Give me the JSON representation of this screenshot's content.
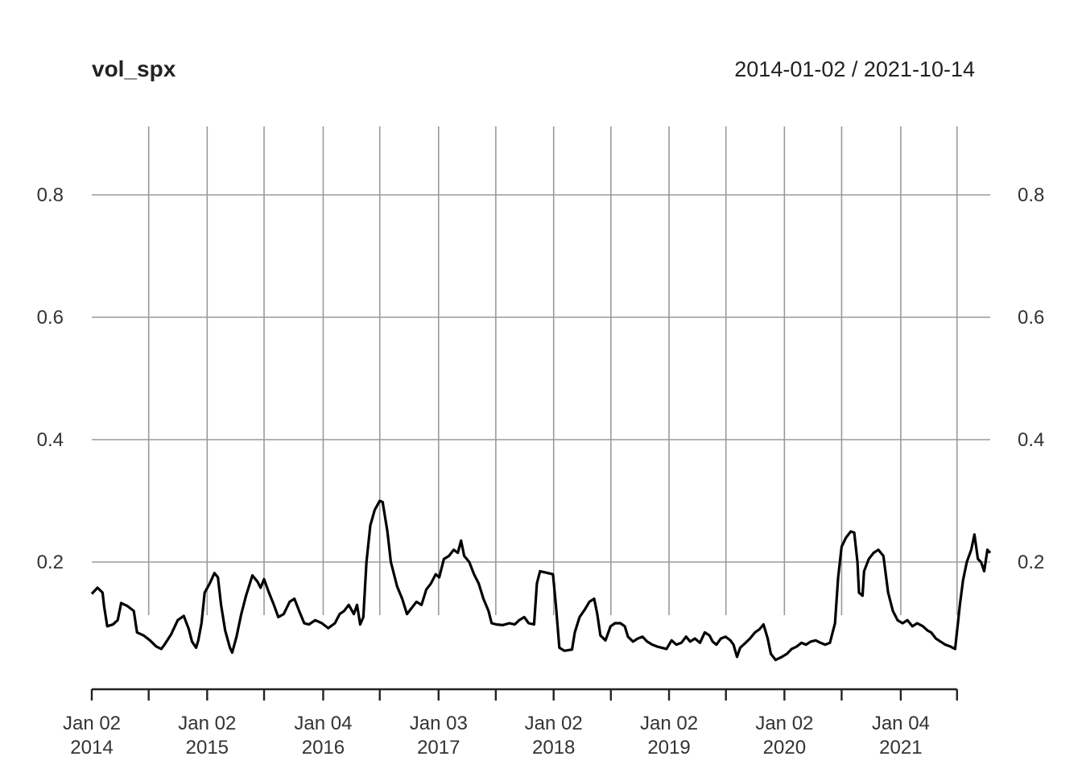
{
  "chart_data": {
    "type": "line",
    "title": "vol_spx",
    "date_range": "2014-01-02 / 2021-10-14",
    "xlabel": "",
    "ylabel": "",
    "xlim": [
      "2014-01-02",
      "2021-10-14"
    ],
    "ylim": [
      0,
      0.93
    ],
    "y_ticks": [
      0.2,
      0.4,
      0.6,
      0.8
    ],
    "y_tick_labels": [
      "0.2",
      "0.4",
      "0.6",
      "0.8"
    ],
    "y_axis_sides": "left-and-right",
    "grid": true,
    "x_major_ticks": [
      {
        "date": "2014-01-02",
        "label": [
          "Jan 02",
          "2014"
        ]
      },
      {
        "date": "2015-01-02",
        "label": [
          "Jan 02",
          "2015"
        ]
      },
      {
        "date": "2016-01-04",
        "label": [
          "Jan 04",
          "2016"
        ]
      },
      {
        "date": "2017-01-03",
        "label": [
          "Jan 03",
          "2017"
        ]
      },
      {
        "date": "2018-01-02",
        "label": [
          "Jan 02",
          "2018"
        ]
      },
      {
        "date": "2019-01-02",
        "label": [
          "Jan 02",
          "2019"
        ]
      },
      {
        "date": "2020-01-02",
        "label": [
          "Jan 02",
          "2020"
        ]
      },
      {
        "date": "2021-01-04",
        "label": [
          "Jan 04",
          "2021"
        ]
      }
    ],
    "x_minor_ticks": [
      "2014-07-01",
      "2015-07-01",
      "2016-07-01",
      "2017-07-03",
      "2018-07-02",
      "2019-07-01",
      "2020-07-01",
      "2021-07-01"
    ],
    "series": [
      {
        "values": [
          [
            "2014-01-02",
            0.148
          ],
          [
            "2014-01-20",
            0.158
          ],
          [
            "2014-02-05",
            0.15
          ],
          [
            "2014-02-10",
            0.128
          ],
          [
            "2014-02-20",
            0.095
          ],
          [
            "2014-03-10",
            0.098
          ],
          [
            "2014-03-25",
            0.105
          ],
          [
            "2014-04-05",
            0.133
          ],
          [
            "2014-04-25",
            0.128
          ],
          [
            "2014-05-15",
            0.12
          ],
          [
            "2014-05-25",
            0.085
          ],
          [
            "2014-06-15",
            0.08
          ],
          [
            "2014-07-05",
            0.072
          ],
          [
            "2014-07-25",
            0.062
          ],
          [
            "2014-08-10",
            0.058
          ],
          [
            "2014-08-20",
            0.065
          ],
          [
            "2014-09-10",
            0.082
          ],
          [
            "2014-10-01",
            0.105
          ],
          [
            "2014-10-20",
            0.112
          ],
          [
            "2014-11-05",
            0.09
          ],
          [
            "2014-11-15",
            0.07
          ],
          [
            "2014-11-28",
            0.06
          ],
          [
            "2014-12-05",
            0.072
          ],
          [
            "2014-12-15",
            0.1
          ],
          [
            "2014-12-25",
            0.15
          ],
          [
            "2015-01-10",
            0.165
          ],
          [
            "2015-01-25",
            0.182
          ],
          [
            "2015-02-05",
            0.175
          ],
          [
            "2015-02-15",
            0.13
          ],
          [
            "2015-02-28",
            0.088
          ],
          [
            "2015-03-15",
            0.06
          ],
          [
            "2015-03-22",
            0.052
          ],
          [
            "2015-04-05",
            0.078
          ],
          [
            "2015-04-20",
            0.115
          ],
          [
            "2015-05-05",
            0.145
          ],
          [
            "2015-05-25",
            0.178
          ],
          [
            "2015-06-10",
            0.168
          ],
          [
            "2015-06-20",
            0.158
          ],
          [
            "2015-07-01",
            0.172
          ],
          [
            "2015-07-15",
            0.152
          ],
          [
            "2015-08-01",
            0.13
          ],
          [
            "2015-08-15",
            0.11
          ],
          [
            "2015-09-01",
            0.115
          ],
          [
            "2015-09-20",
            0.135
          ],
          [
            "2015-10-05",
            0.14
          ],
          [
            "2015-10-20",
            0.12
          ],
          [
            "2015-11-05",
            0.1
          ],
          [
            "2015-11-20",
            0.098
          ],
          [
            "2015-12-10",
            0.105
          ],
          [
            "2015-12-31",
            0.1
          ],
          [
            "2016-01-20",
            0.092
          ],
          [
            "2016-02-10",
            0.1
          ],
          [
            "2016-02-25",
            0.115
          ],
          [
            "2016-03-10",
            0.12
          ],
          [
            "2016-03-25",
            0.13
          ],
          [
            "2016-04-10",
            0.115
          ],
          [
            "2016-04-20",
            0.13
          ],
          [
            "2016-04-30",
            0.098
          ],
          [
            "2016-05-10",
            0.11
          ],
          [
            "2016-05-20",
            0.2
          ],
          [
            "2016-06-01",
            0.26
          ],
          [
            "2016-06-15",
            0.285
          ],
          [
            "2016-07-01",
            0.3
          ],
          [
            "2016-07-10",
            0.298
          ],
          [
            "2016-07-25",
            0.25
          ],
          [
            "2016-08-05",
            0.2
          ],
          [
            "2016-08-25",
            0.16
          ],
          [
            "2016-09-10",
            0.14
          ],
          [
            "2016-09-25",
            0.115
          ],
          [
            "2016-10-10",
            0.125
          ],
          [
            "2016-10-25",
            0.135
          ],
          [
            "2016-11-10",
            0.13
          ],
          [
            "2016-11-25",
            0.155
          ],
          [
            "2016-12-10",
            0.165
          ],
          [
            "2016-12-25",
            0.18
          ],
          [
            "2017-01-05",
            0.175
          ],
          [
            "2017-01-20",
            0.205
          ],
          [
            "2017-02-05",
            0.21
          ],
          [
            "2017-02-20",
            0.22
          ],
          [
            "2017-03-05",
            0.215
          ],
          [
            "2017-03-15",
            0.235
          ],
          [
            "2017-03-25",
            0.21
          ],
          [
            "2017-04-10",
            0.2
          ],
          [
            "2017-04-25",
            0.18
          ],
          [
            "2017-05-10",
            0.165
          ],
          [
            "2017-05-25",
            0.14
          ],
          [
            "2017-06-10",
            0.12
          ],
          [
            "2017-06-20",
            0.1
          ],
          [
            "2017-07-05",
            0.098
          ],
          [
            "2017-07-25",
            0.097
          ],
          [
            "2017-08-15",
            0.1
          ],
          [
            "2017-09-01",
            0.098
          ],
          [
            "2017-09-15",
            0.105
          ],
          [
            "2017-10-01",
            0.11
          ],
          [
            "2017-10-15",
            0.1
          ],
          [
            "2017-11-01",
            0.098
          ],
          [
            "2017-11-10",
            0.165
          ],
          [
            "2017-11-20",
            0.185
          ],
          [
            "2017-12-15",
            0.182
          ],
          [
            "2017-12-31",
            0.18
          ],
          [
            "2018-01-10",
            0.125
          ],
          [
            "2018-01-20",
            0.06
          ],
          [
            "2018-02-05",
            0.055
          ],
          [
            "2018-03-01",
            0.057
          ],
          [
            "2018-03-10",
            0.085
          ],
          [
            "2018-03-25",
            0.11
          ],
          [
            "2018-04-10",
            0.122
          ],
          [
            "2018-04-25",
            0.135
          ],
          [
            "2018-05-10",
            0.14
          ],
          [
            "2018-05-20",
            0.115
          ],
          [
            "2018-05-30",
            0.08
          ],
          [
            "2018-06-15",
            0.072
          ],
          [
            "2018-07-01",
            0.095
          ],
          [
            "2018-07-15",
            0.1
          ],
          [
            "2018-08-01",
            0.1
          ],
          [
            "2018-08-15",
            0.095
          ],
          [
            "2018-08-25",
            0.078
          ],
          [
            "2018-09-10",
            0.07
          ],
          [
            "2018-09-25",
            0.075
          ],
          [
            "2018-10-10",
            0.078
          ],
          [
            "2018-10-25",
            0.07
          ],
          [
            "2018-11-10",
            0.065
          ],
          [
            "2018-11-25",
            0.062
          ],
          [
            "2018-12-10",
            0.06
          ],
          [
            "2018-12-25",
            0.058
          ],
          [
            "2019-01-10",
            0.072
          ],
          [
            "2019-01-25",
            0.065
          ],
          [
            "2019-02-10",
            0.068
          ],
          [
            "2019-02-25",
            0.078
          ],
          [
            "2019-03-10",
            0.07
          ],
          [
            "2019-03-25",
            0.075
          ],
          [
            "2019-04-10",
            0.068
          ],
          [
            "2019-04-25",
            0.085
          ],
          [
            "2019-05-10",
            0.08
          ],
          [
            "2019-05-20",
            0.07
          ],
          [
            "2019-06-01",
            0.065
          ],
          [
            "2019-06-15",
            0.075
          ],
          [
            "2019-06-30",
            0.078
          ],
          [
            "2019-07-15",
            0.072
          ],
          [
            "2019-07-25",
            0.065
          ],
          [
            "2019-08-05",
            0.045
          ],
          [
            "2019-08-15",
            0.06
          ],
          [
            "2019-09-01",
            0.068
          ],
          [
            "2019-09-15",
            0.075
          ],
          [
            "2019-10-01",
            0.085
          ],
          [
            "2019-10-15",
            0.09
          ],
          [
            "2019-10-28",
            0.098
          ],
          [
            "2019-11-10",
            0.075
          ],
          [
            "2019-11-20",
            0.05
          ],
          [
            "2019-12-05",
            0.04
          ],
          [
            "2019-12-25",
            0.045
          ],
          [
            "2020-01-10",
            0.05
          ],
          [
            "2020-01-25",
            0.058
          ],
          [
            "2020-02-10",
            0.062
          ],
          [
            "2020-02-25",
            0.068
          ],
          [
            "2020-03-10",
            0.065
          ],
          [
            "2020-03-25",
            0.07
          ],
          [
            "2020-04-10",
            0.072
          ],
          [
            "2020-04-25",
            0.068
          ],
          [
            "2020-05-10",
            0.065
          ],
          [
            "2020-05-25",
            0.068
          ],
          [
            "2020-06-10",
            0.1
          ],
          [
            "2020-06-20",
            0.175
          ],
          [
            "2020-07-01",
            0.225
          ],
          [
            "2020-07-15",
            0.24
          ],
          [
            "2020-07-30",
            0.25
          ],
          [
            "2020-08-10",
            0.248
          ],
          [
            "2020-08-20",
            0.2
          ],
          [
            "2020-08-25",
            0.15
          ],
          [
            "2020-09-05",
            0.145
          ],
          [
            "2020-09-10",
            0.185
          ],
          [
            "2020-09-25",
            0.205
          ],
          [
            "2020-10-10",
            0.215
          ],
          [
            "2020-10-25",
            0.22
          ],
          [
            "2020-11-10",
            0.21
          ],
          [
            "2020-11-25",
            0.15
          ],
          [
            "2020-12-10",
            0.12
          ],
          [
            "2020-12-25",
            0.105
          ],
          [
            "2021-01-10",
            0.1
          ],
          [
            "2021-01-25",
            0.105
          ],
          [
            "2021-02-10",
            0.095
          ],
          [
            "2021-02-25",
            0.1
          ],
          [
            "2021-03-15",
            0.095
          ],
          [
            "2021-03-30",
            0.088
          ],
          [
            "2021-04-10",
            0.085
          ],
          [
            "2021-04-25",
            0.075
          ],
          [
            "2021-05-10",
            0.07
          ],
          [
            "2021-05-25",
            0.065
          ],
          [
            "2021-06-10",
            0.062
          ],
          [
            "2021-06-25",
            0.058
          ],
          [
            "2021-07-10",
            0.13
          ],
          [
            "2021-07-20",
            0.17
          ],
          [
            "2021-08-01",
            0.2
          ],
          [
            "2021-08-15",
            0.22
          ],
          [
            "2021-08-25",
            0.245
          ],
          [
            "2021-09-05",
            0.205
          ],
          [
            "2021-09-15",
            0.2
          ],
          [
            "2021-09-25",
            0.185
          ],
          [
            "2021-10-05",
            0.22
          ],
          [
            "2021-10-14",
            0.215
          ]
        ]
      }
    ]
  }
}
